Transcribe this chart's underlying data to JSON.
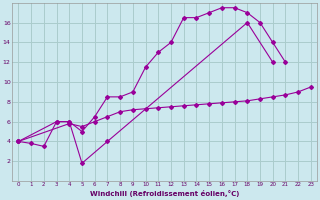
{
  "xlabel": "Windchill (Refroidissement éolien,°C)",
  "bg_color": "#cce8ee",
  "grid_color": "#aacccc",
  "line_color": "#990099",
  "line1_x": [
    0,
    1,
    2,
    3,
    4,
    5,
    6,
    7,
    8,
    9,
    10,
    11,
    12,
    13,
    14,
    15,
    16,
    17,
    18,
    19,
    20,
    21
  ],
  "line1_y": [
    4.0,
    3.8,
    3.5,
    6.0,
    6.0,
    5.0,
    6.5,
    8.5,
    8.5,
    9.0,
    11.5,
    13.0,
    14.0,
    16.5,
    16.5,
    17.0,
    17.5,
    17.5,
    17.0,
    16.0,
    14.0,
    12.0
  ],
  "line2_x": [
    0,
    3,
    4,
    5,
    7,
    18,
    20
  ],
  "line2_y": [
    4.0,
    6.0,
    6.0,
    1.8,
    4.0,
    16.0,
    12.0
  ],
  "line3_x": [
    0,
    4,
    5,
    6,
    7,
    8,
    9,
    10,
    11,
    12,
    13,
    14,
    15,
    16,
    17,
    18,
    19,
    20,
    21,
    22,
    23
  ],
  "line3_y": [
    4.0,
    5.8,
    5.5,
    6.0,
    6.5,
    7.0,
    7.2,
    7.3,
    7.4,
    7.5,
    7.6,
    7.7,
    7.8,
    7.9,
    8.0,
    8.1,
    8.3,
    8.5,
    8.7,
    9.0,
    9.5
  ],
  "xlim": [
    -0.5,
    23.5
  ],
  "ylim": [
    0,
    18
  ],
  "xticks": [
    0,
    1,
    2,
    3,
    4,
    5,
    6,
    7,
    8,
    9,
    10,
    11,
    12,
    13,
    14,
    15,
    16,
    17,
    18,
    19,
    20,
    21,
    22,
    23
  ],
  "yticks": [
    2,
    4,
    6,
    8,
    10,
    12,
    14,
    16
  ]
}
